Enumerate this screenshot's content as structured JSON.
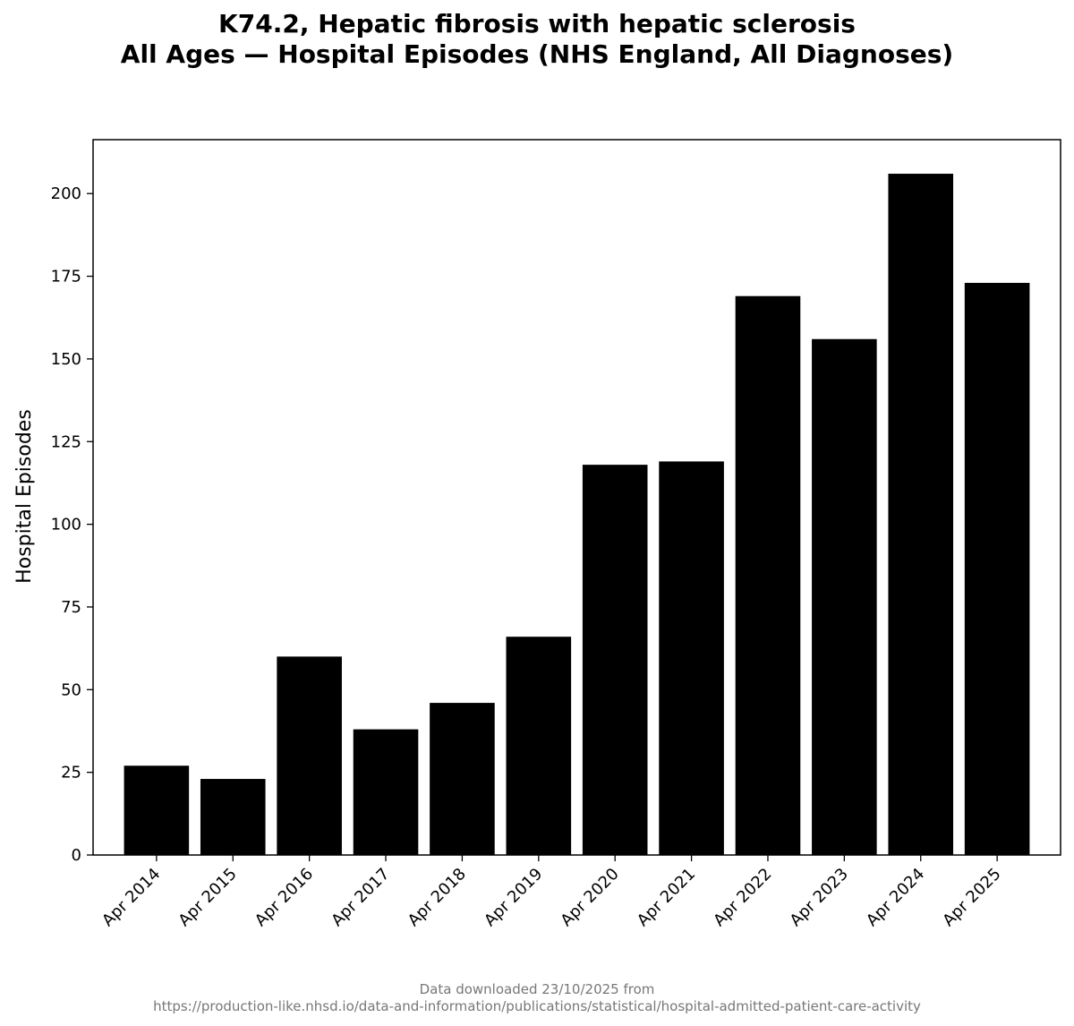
{
  "chart_data": {
    "type": "bar",
    "title_line1": "K74.2, Hepatic fibrosis with hepatic sclerosis",
    "title_line2": "All Ages — Hospital Episodes (NHS England, All Diagnoses)",
    "xlabel": "",
    "ylabel": "Hospital Episodes",
    "categories": [
      "Apr 2014",
      "Apr 2015",
      "Apr 2016",
      "Apr 2017",
      "Apr 2018",
      "Apr 2019",
      "Apr 2020",
      "Apr 2021",
      "Apr 2022",
      "Apr 2023",
      "Apr 2024",
      "Apr 2025"
    ],
    "values": [
      27,
      23,
      60,
      38,
      46,
      66,
      118,
      119,
      169,
      156,
      206,
      173
    ],
    "ylim": [
      0,
      216.3
    ],
    "yticks": [
      0,
      25,
      50,
      75,
      100,
      125,
      150,
      175,
      200
    ],
    "bar_color": "#000000",
    "grid": false,
    "legend": "none"
  },
  "footer": {
    "line1": "Data downloaded 23/10/2025 from",
    "line2": "https://production-like.nhsd.io/data-and-information/publications/statistical/hospital-admitted-patient-care-activity"
  }
}
